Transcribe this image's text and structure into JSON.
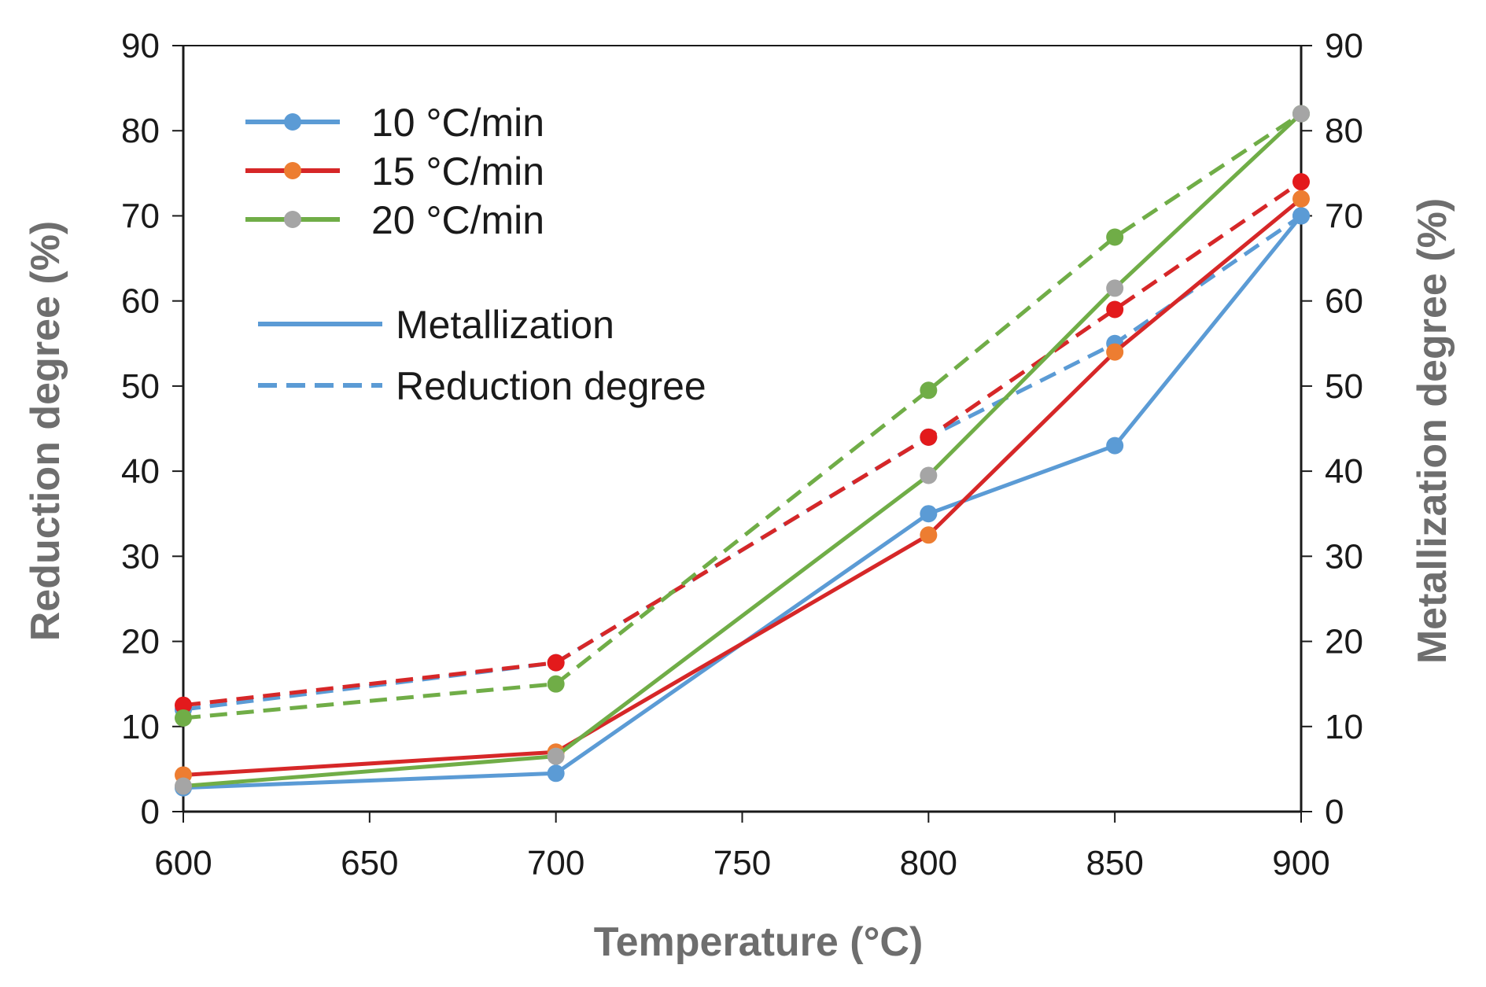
{
  "chart_data": {
    "type": "line",
    "xlabel": "Temperature (°C)",
    "ylabel_left": "Reduction degree (%)",
    "ylabel_right": "Metallization degree (%)",
    "xlim": [
      600,
      900
    ],
    "ylim": [
      0,
      90
    ],
    "x_ticks": [
      "600",
      "650",
      "700",
      "750",
      "800",
      "850",
      "900"
    ],
    "x_tick_values": [
      600,
      650,
      700,
      750,
      800,
      850,
      900
    ],
    "y_ticks": [
      "0",
      "10",
      "20",
      "30",
      "40",
      "50",
      "60",
      "70",
      "80",
      "90"
    ],
    "y_tick_values": [
      0,
      10,
      20,
      30,
      40,
      50,
      60,
      70,
      80,
      90
    ],
    "grid": false,
    "legend_placement": "top-left",
    "x": [
      600,
      700,
      800,
      850,
      900
    ],
    "series": [
      {
        "name": "10 °C/min",
        "metric": "Metallization",
        "values": [
          2.8,
          4.5,
          35,
          43,
          70
        ],
        "color": "#5b9bd5",
        "marker_color": "#5b9bd5",
        "dash": false
      },
      {
        "name": "15 °C/min",
        "metric": "Metallization",
        "values": [
          4.3,
          7,
          32.5,
          54,
          72
        ],
        "color": "#d62728",
        "marker_color": "#ed7d31",
        "dash": false
      },
      {
        "name": "20 °C/min",
        "metric": "Metallization",
        "values": [
          3,
          6.5,
          39.5,
          61.5,
          82
        ],
        "color": "#70ad47",
        "marker_color": "#a5a5a5",
        "dash": false
      },
      {
        "name": "10 °C/min",
        "metric": "Reduction degree",
        "values": [
          12,
          17.5,
          44,
          55,
          70
        ],
        "color": "#5b9bd5",
        "marker_color": "#5b9bd5",
        "dash": true
      },
      {
        "name": "15 °C/min",
        "metric": "Reduction degree",
        "values": [
          12.5,
          17.5,
          44,
          59,
          74
        ],
        "color": "#d62728",
        "marker_color": "#e31a1c",
        "dash": true
      },
      {
        "name": "20 °C/min",
        "metric": "Reduction degree",
        "values": [
          11,
          15,
          49.5,
          67.5,
          82
        ],
        "color": "#70ad47",
        "marker_color": "#70ad47",
        "dash": true
      }
    ],
    "legend": {
      "rates": [
        {
          "label": "10 °C/min",
          "line_color": "#5b9bd5",
          "marker_color": "#5b9bd5"
        },
        {
          "label": "15 °C/min",
          "line_color": "#d62728",
          "marker_color": "#ed7d31"
        },
        {
          "label": "20 °C/min",
          "line_color": "#70ad47",
          "marker_color": "#a5a5a5"
        }
      ],
      "styles": [
        {
          "label": "Metallization",
          "dash": false,
          "color": "#5b9bd5"
        },
        {
          "label": "Reduction degree",
          "dash": true,
          "color": "#5b9bd5"
        }
      ]
    }
  }
}
